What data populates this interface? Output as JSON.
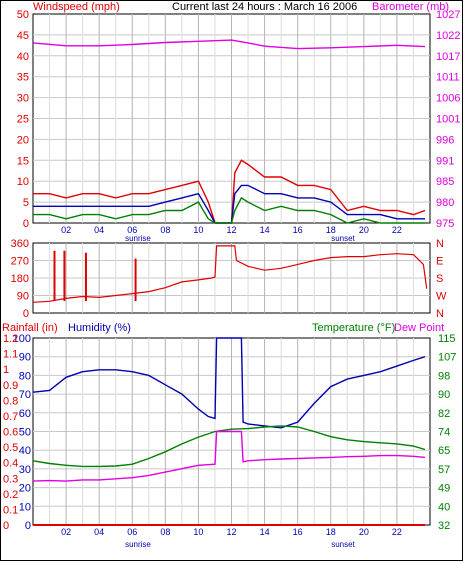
{
  "colors": {
    "wind": "#e00000",
    "gust": "#e00000",
    "wind_avg": "#0000b0",
    "wind_low": "#008000",
    "barometer": "#e000e0",
    "direction": "#e00000",
    "rain": "#e00000",
    "humidity": "#0000b0",
    "temperature": "#008000",
    "dewpoint": "#e000e0",
    "grid": "#c8c8c8",
    "axis": "#000000"
  },
  "header": {
    "title": "Current last 24 hours : March 16 2006",
    "left_label": "Windspeed (mph)",
    "right_label": "Barometer (mb)"
  },
  "labels": {
    "rainfall": "Rainfall (in)",
    "humidity": "Humidity (%)",
    "temperature": "Temperature (°F)",
    "dewpoint": "Dew Point",
    "sunrise": "sunrise",
    "sunset": "sunset"
  },
  "chart_data": [
    {
      "type": "line",
      "panel": "wind",
      "xlabel": "",
      "x_ticks": [
        "02",
        "04",
        "06",
        "08",
        "10",
        "12",
        "14",
        "16",
        "18",
        "20",
        "22"
      ],
      "ylim": [
        0,
        50
      ],
      "y_ticks": [
        0,
        5,
        10,
        15,
        20,
        25,
        30,
        35,
        40,
        45,
        50
      ],
      "y2lim": [
        975,
        1027
      ],
      "y2_ticks": [
        975,
        980,
        985,
        991,
        996,
        1001,
        1006,
        1011,
        1017,
        1022,
        1027
      ],
      "grid": true,
      "series": [
        {
          "name": "Windspeed (mph)",
          "axis": "left",
          "color_key": "wind",
          "x": [
            0,
            1,
            2,
            3,
            4,
            5,
            6,
            7,
            8,
            9,
            10,
            10.6,
            11,
            12,
            12.2,
            12.6,
            13,
            14,
            15,
            16,
            17,
            18,
            19,
            20,
            21,
            22,
            23,
            23.7
          ],
          "values": [
            7,
            7,
            6,
            7,
            7,
            6,
            7,
            7,
            8,
            9,
            10,
            5,
            0,
            0,
            12,
            15,
            14,
            11,
            11,
            9,
            9,
            8,
            3,
            4,
            3,
            3,
            2,
            3
          ]
        },
        {
          "name": "",
          "axis": "left",
          "color_key": "wind_avg",
          "x": [
            0,
            1,
            2,
            3,
            4,
            5,
            6,
            7,
            8,
            9,
            10,
            10.6,
            11,
            12,
            12.2,
            12.6,
            13,
            14,
            15,
            16,
            17,
            18,
            19,
            20,
            21,
            22,
            23,
            23.7
          ],
          "values": [
            4,
            4,
            4,
            4,
            4,
            4,
            4,
            4,
            5,
            6,
            7,
            3,
            0,
            0,
            7,
            9,
            9,
            7,
            7,
            6,
            6,
            5,
            2,
            2,
            2,
            1,
            1,
            1
          ]
        },
        {
          "name": "",
          "axis": "left",
          "color_key": "wind_low",
          "x": [
            0,
            1,
            2,
            3,
            4,
            5,
            6,
            7,
            8,
            9,
            10,
            10.6,
            11,
            12,
            12.2,
            12.6,
            13,
            14,
            15,
            16,
            17,
            18,
            19,
            20,
            21,
            22,
            23,
            23.7
          ],
          "values": [
            2,
            2,
            1,
            2,
            2,
            1,
            2,
            2,
            3,
            3,
            5,
            1,
            0,
            0,
            3,
            6,
            5,
            3,
            4,
            3,
            3,
            2,
            0,
            1,
            0,
            0,
            0,
            0
          ]
        },
        {
          "name": "Barometer (mb)",
          "axis": "right",
          "color_key": "barometer",
          "x": [
            0,
            2,
            4,
            6,
            8,
            10,
            12,
            13,
            14,
            16,
            18,
            20,
            22,
            23.7
          ],
          "values": [
            1019.8,
            1019.1,
            1019.1,
            1019.4,
            1019.9,
            1020.2,
            1020.5,
            1019.8,
            1019.0,
            1018.4,
            1018.6,
            1018.9,
            1019.2,
            1018.9
          ]
        }
      ]
    },
    {
      "type": "line",
      "panel": "wind direction",
      "ylim": [
        0,
        360
      ],
      "y_ticks": [
        0,
        90,
        180,
        270,
        360
      ],
      "y2_ticks": [
        "N",
        "E",
        "S",
        "W",
        "N"
      ],
      "grid": true,
      "series": [
        {
          "name": "",
          "color_key": "direction",
          "x": [
            0,
            1,
            2,
            3,
            4,
            5,
            6,
            7,
            8,
            9,
            10,
            10.8,
            11,
            11.1,
            12.2,
            12.3,
            13,
            14,
            15,
            16,
            17,
            18,
            19,
            20,
            21,
            22,
            23,
            23.6,
            23.8
          ],
          "values": [
            55,
            60,
            75,
            85,
            80,
            90,
            100,
            110,
            130,
            160,
            170,
            180,
            185,
            345,
            345,
            270,
            240,
            220,
            230,
            250,
            270,
            285,
            290,
            290,
            300,
            305,
            300,
            250,
            125
          ]
        }
      ],
      "spikes": [
        {
          "x": 1.3,
          "value": 320
        },
        {
          "x": 1.9,
          "value": 320
        },
        {
          "x": 3.2,
          "value": 310
        },
        {
          "x": 6.2,
          "value": 280
        }
      ]
    },
    {
      "type": "line",
      "panel": "humidity temperature",
      "ylim": [
        0,
        100
      ],
      "y_ticks": [
        0,
        10,
        20,
        30,
        40,
        50,
        60,
        70,
        80,
        90,
        100
      ],
      "rain_ticks": [
        0,
        0.1,
        0.2,
        0.3,
        0.4,
        0.5,
        0.6,
        0.7,
        0.8,
        0.9,
        1,
        1.1,
        1.2
      ],
      "temp_ticks": [
        32,
        40,
        49,
        57,
        65,
        74,
        82,
        90,
        98,
        107,
        115
      ],
      "grid": true,
      "series": [
        {
          "name": "Humidity (%)",
          "axis": "humidity",
          "color_key": "humidity",
          "x": [
            0,
            1,
            2,
            3,
            4,
            5,
            6,
            7,
            8,
            9,
            10,
            10.6,
            11,
            11.1,
            12.6,
            12.7,
            13,
            14,
            15,
            16,
            17,
            18,
            19,
            20,
            21,
            22,
            23,
            23.7
          ],
          "values": [
            71,
            72,
            79,
            82,
            83,
            83,
            82,
            80,
            75,
            70,
            62,
            58,
            57,
            100,
            100,
            55,
            54,
            53,
            52,
            55,
            65,
            74,
            78,
            80,
            82,
            85,
            88,
            90
          ]
        },
        {
          "name": "Temperature (°F)",
          "axis": "temp",
          "color_key": "temperature",
          "x": [
            0,
            1,
            2,
            3,
            4,
            5,
            6,
            7,
            8,
            9,
            10,
            11,
            12,
            13,
            14,
            15,
            16,
            17,
            18,
            19,
            20,
            21,
            22,
            23,
            23.7
          ],
          "values": [
            60.5,
            59.3,
            58.5,
            58.0,
            58.0,
            58.2,
            59.0,
            61.5,
            64.5,
            68.0,
            71.0,
            73.5,
            74.5,
            74.8,
            75.5,
            76.0,
            75.5,
            73.5,
            71.2,
            69.8,
            69.0,
            68.5,
            68.0,
            67.0,
            65.5
          ]
        },
        {
          "name": "Dew Point",
          "axis": "temp",
          "color_key": "dewpoint",
          "x": [
            0,
            1,
            2,
            3,
            4,
            5,
            6,
            7,
            8,
            9,
            10,
            11,
            11.1,
            12.6,
            12.7,
            13,
            14,
            15,
            16,
            17,
            18,
            19,
            20,
            21,
            22,
            23,
            23.7
          ],
          "values": [
            51.5,
            51.7,
            51.5,
            52.0,
            52.0,
            52.5,
            53.0,
            54.0,
            55.5,
            57.0,
            58.5,
            59.0,
            73.5,
            73.5,
            60.0,
            60.5,
            61.0,
            61.3,
            61.5,
            61.8,
            62.0,
            62.3,
            62.5,
            62.8,
            62.8,
            62.5,
            62.0
          ]
        },
        {
          "name": "Rainfall (in)",
          "axis": "rain",
          "color_key": "rain",
          "x": [
            0,
            23.7
          ],
          "values": [
            0,
            0
          ]
        }
      ]
    }
  ]
}
